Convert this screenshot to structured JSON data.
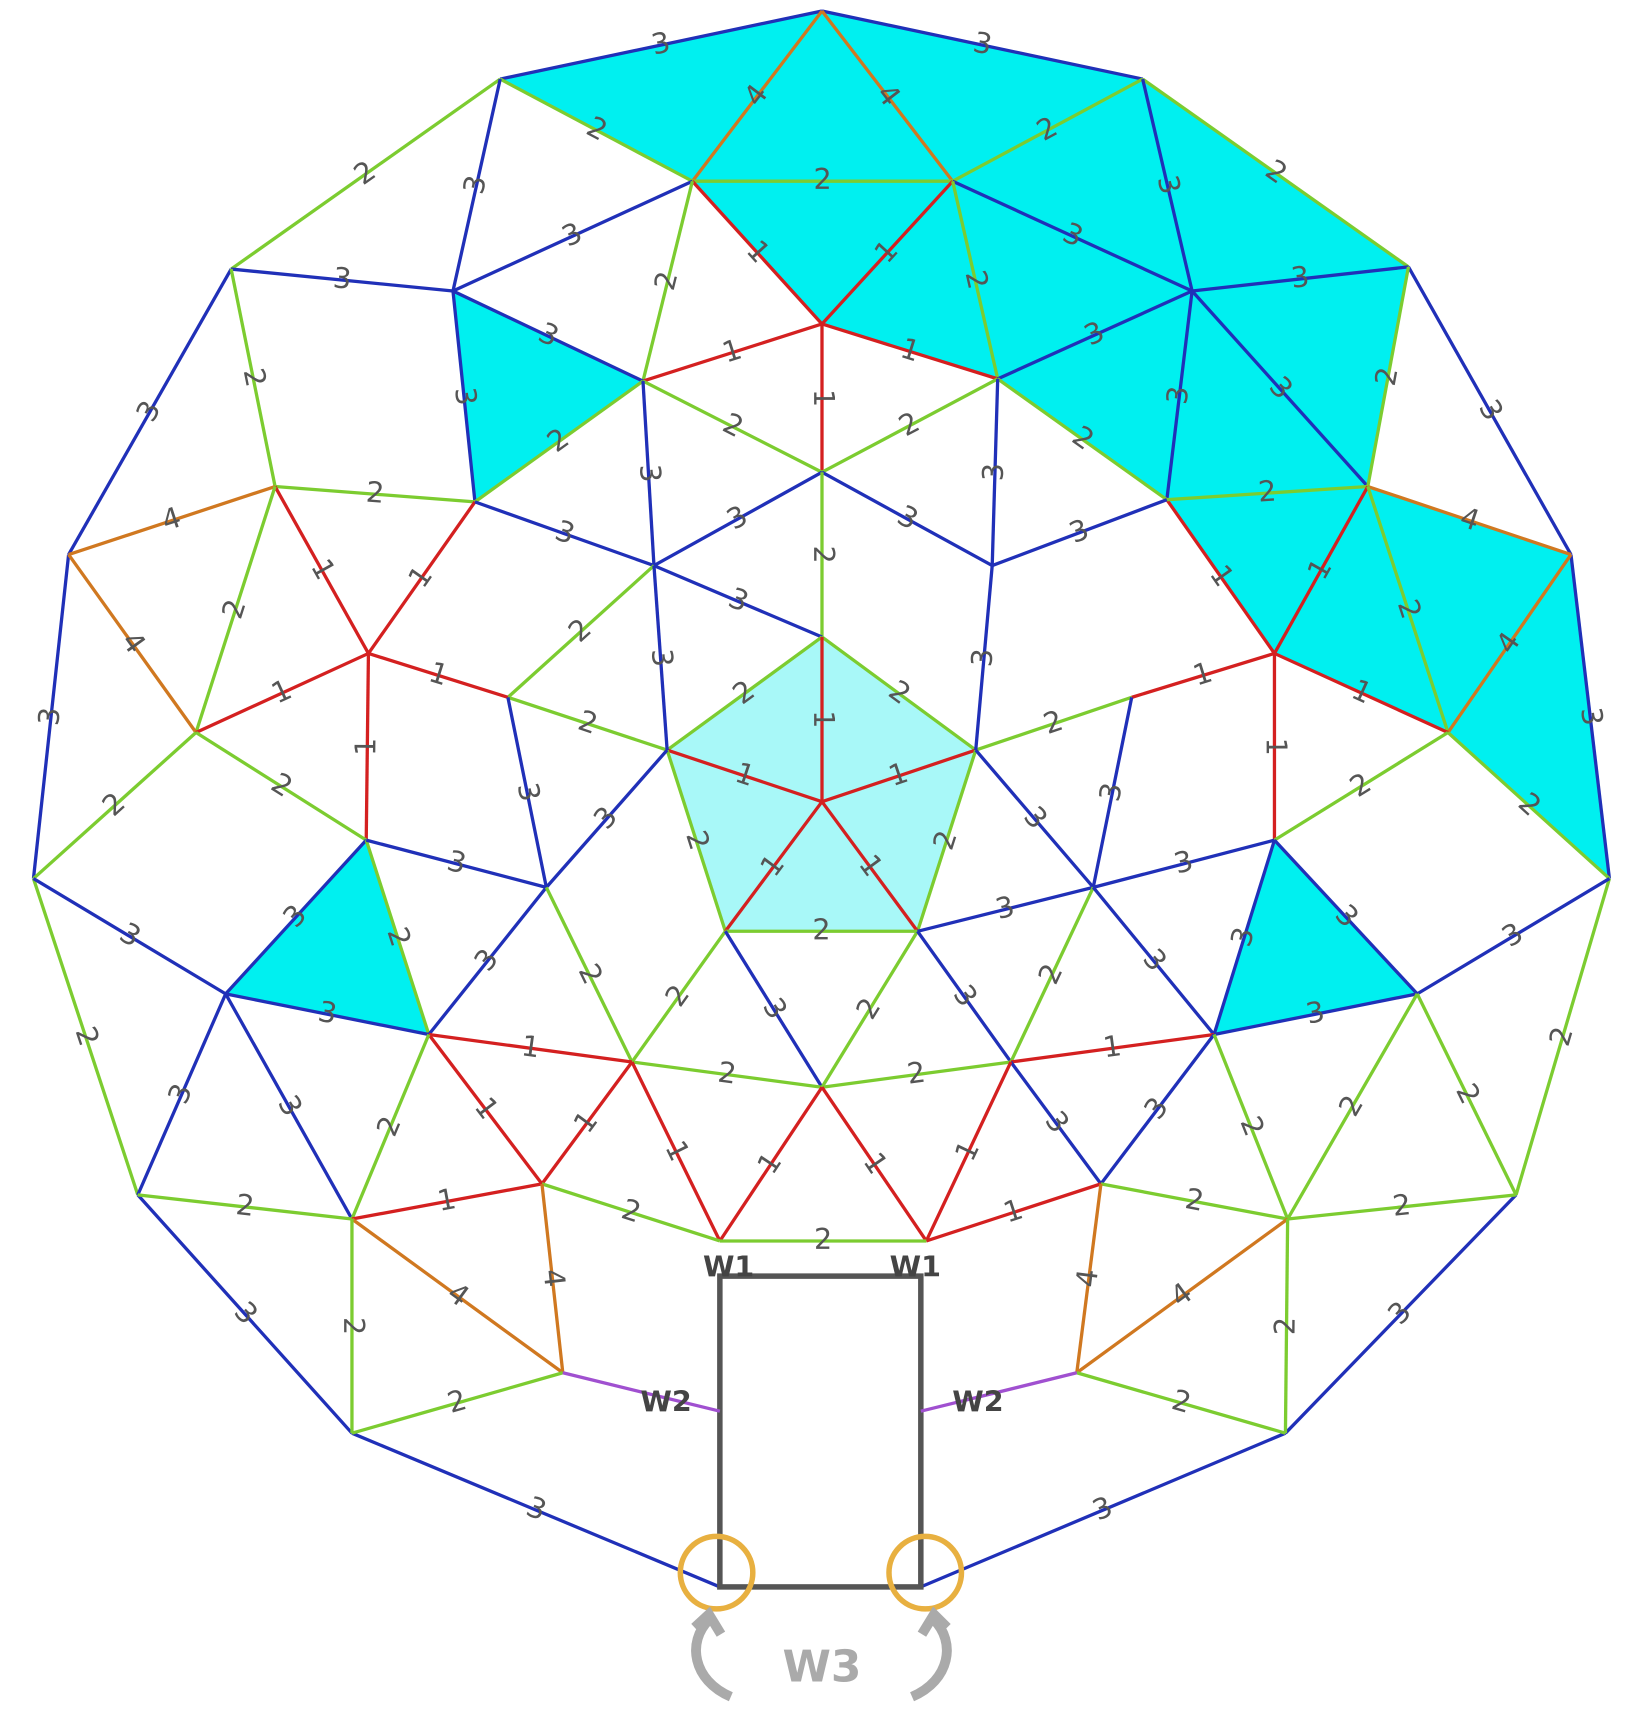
{
  "strut_labels": [
    "3",
    "3",
    "2",
    "3",
    "3",
    "2",
    "3",
    "3",
    "3",
    "3",
    "2",
    "3",
    "3",
    "2",
    "4",
    "4",
    "2",
    "2",
    "2",
    "1",
    "1",
    "3",
    "3",
    "2",
    "3",
    "3",
    "3",
    "2",
    "1",
    "1",
    "1",
    "3",
    "3",
    "3",
    "2",
    "4",
    "3",
    "3",
    "3",
    "2",
    "4",
    "2",
    "2",
    "2",
    "2",
    "3",
    "3",
    "3",
    "3",
    "2",
    "2",
    "1",
    "1",
    "2",
    "1",
    "2",
    "4",
    "1",
    "2",
    "4",
    "3",
    "3",
    "3",
    "2",
    "1",
    "1",
    "1",
    "1",
    "1",
    "1",
    "2",
    "2",
    "1",
    "1",
    "1",
    "2",
    "2",
    "1",
    "1",
    "2",
    "2",
    "2",
    "3",
    "3",
    "3",
    "3",
    "3",
    "3",
    "2",
    "2",
    "2",
    "2",
    "3",
    "3",
    "2",
    "3",
    "3",
    "3",
    "2",
    "2",
    "3",
    "2",
    "3",
    "3",
    "2",
    "3",
    "3",
    "3",
    "3",
    "3",
    "3",
    "2",
    "2",
    "3",
    "3",
    "1",
    "1",
    "2",
    "2",
    "1",
    "1",
    "2",
    "2",
    "3",
    "3",
    "2",
    "2",
    "1",
    "1",
    "1",
    "1",
    "2",
    "1",
    "1",
    "2",
    "2",
    "4",
    "4",
    "4",
    "4",
    "2",
    "2",
    "2",
    "2"
  ],
  "door": {
    "top_labels": [
      "W1",
      "W1"
    ],
    "side_labels": [
      "W2",
      "W2"
    ],
    "bottom_label": "W3"
  }
}
